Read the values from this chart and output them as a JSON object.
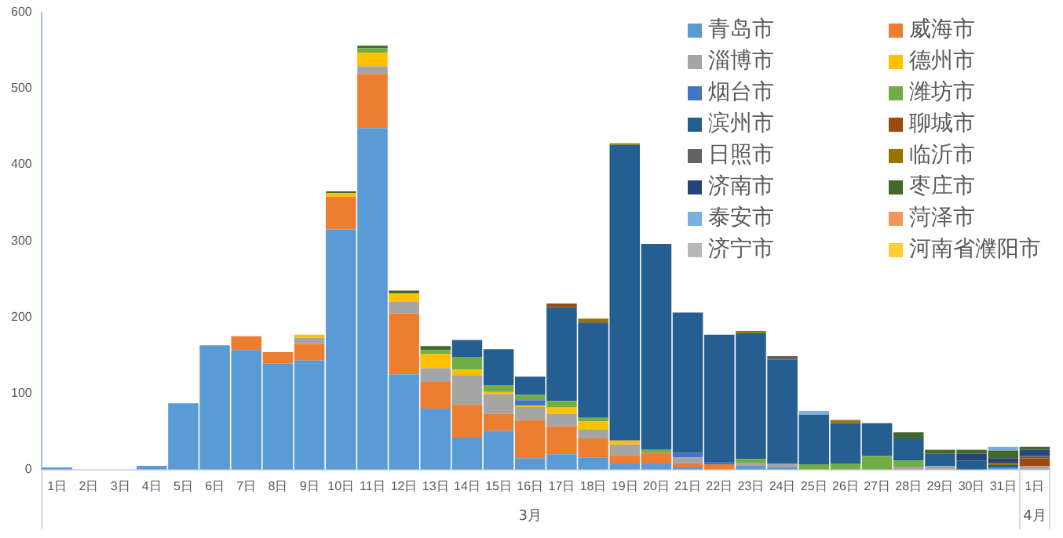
{
  "chart_data": {
    "type": "bar",
    "stacked": true,
    "categories": [
      "1日",
      "2日",
      "3日",
      "4日",
      "5日",
      "6日",
      "7日",
      "8日",
      "9日",
      "10日",
      "11日",
      "12日",
      "13日",
      "14日",
      "15日",
      "16日",
      "17日",
      "18日",
      "19日",
      "20日",
      "21日",
      "22日",
      "23日",
      "24日",
      "25日",
      "26日",
      "27日",
      "28日",
      "29日",
      "30日",
      "31日",
      "1日"
    ],
    "annotations": [
      "3月",
      "4月"
    ],
    "ylim": [
      0,
      600
    ],
    "yticks": [
      0,
      100,
      200,
      300,
      400,
      500,
      600
    ],
    "grid": false,
    "legend": "top right",
    "series": [
      {
        "name": "青岛市",
        "color": "#5b9bd5",
        "values": [
          3,
          0,
          0,
          5,
          87,
          163,
          157,
          139,
          143,
          315,
          448,
          125,
          80,
          42,
          51,
          15,
          20,
          16,
          8,
          8,
          3,
          0,
          5,
          3,
          0,
          0,
          0,
          0,
          0,
          0,
          2,
          0
        ]
      },
      {
        "name": "威海市",
        "color": "#ed7d31",
        "values": [
          0,
          0,
          0,
          0,
          0,
          0,
          18,
          15,
          22,
          43,
          71,
          80,
          35,
          43,
          22,
          50,
          37,
          25,
          11,
          14,
          5,
          7,
          0,
          0,
          0,
          0,
          0,
          0,
          0,
          0,
          0,
          0
        ]
      },
      {
        "name": "淄博市",
        "color": "#a5a5a5",
        "values": [
          0,
          0,
          0,
          0,
          0,
          0,
          0,
          0,
          8,
          null,
          10,
          15,
          18,
          39,
          26,
          17,
          16,
          12,
          14,
          null,
          8,
          0,
          4,
          5,
          0,
          0,
          0,
          4,
          5,
          0,
          0,
          5
        ]
      },
      {
        "name": "德州市",
        "color": "#ffc000",
        "values": [
          0,
          0,
          0,
          0,
          0,
          0,
          0,
          0,
          4,
          5,
          18,
          11,
          19,
          7,
          3,
          2,
          9,
          10,
          5,
          0,
          0,
          0,
          0,
          0,
          0,
          0,
          0,
          0,
          0,
          0,
          0,
          0
        ]
      },
      {
        "name": "烟台市",
        "color": "#4472c4",
        "values": [
          0,
          0,
          0,
          0,
          0,
          0,
          0,
          0,
          0,
          0,
          0,
          0,
          0,
          0,
          0,
          7,
          0,
          0,
          0,
          0,
          6,
          3,
          0,
          0,
          0,
          0,
          0,
          0,
          0,
          0,
          0,
          0
        ]
      },
      {
        "name": "潍坊市",
        "color": "#70ad47",
        "values": [
          0,
          0,
          0,
          0,
          0,
          0,
          0,
          0,
          0,
          0,
          6,
          0,
          5,
          17,
          9,
          7,
          8,
          5,
          0,
          4,
          0,
          0,
          5,
          0,
          7,
          8,
          18,
          8,
          0,
          0,
          0,
          0
        ]
      },
      {
        "name": "滨州市",
        "color": "#255e91",
        "values": [
          0,
          0,
          0,
          0,
          0,
          0,
          0,
          0,
          0,
          0,
          0,
          0,
          0,
          22,
          47,
          24,
          123,
          125,
          388,
          270,
          184,
          167,
          165,
          136,
          65,
          53,
          43,
          29,
          16,
          12,
          4,
          0
        ]
      },
      {
        "name": "聊城市",
        "color": "#9e480e",
        "values": [
          0,
          0,
          0,
          0,
          0,
          0,
          0,
          0,
          0,
          0,
          0,
          0,
          0,
          0,
          0,
          0,
          5,
          0,
          0,
          0,
          0,
          0,
          0,
          0,
          0,
          0,
          0,
          0,
          0,
          0,
          0,
          10
        ]
      },
      {
        "name": "日照市",
        "color": "#636363",
        "values": [
          0,
          0,
          0,
          0,
          0,
          0,
          0,
          0,
          0,
          0,
          0,
          0,
          0,
          0,
          0,
          0,
          0,
          0,
          0,
          0,
          0,
          0,
          0,
          5,
          0,
          0,
          0,
          0,
          0,
          0,
          0,
          3
        ]
      },
      {
        "name": "临沂市",
        "color": "#997300",
        "values": [
          0,
          0,
          0,
          0,
          0,
          0,
          0,
          0,
          0,
          0,
          0,
          0,
          0,
          0,
          0,
          0,
          0,
          5,
          2,
          0,
          0,
          0,
          3,
          0,
          0,
          4,
          0,
          0,
          0,
          0,
          3,
          0
        ]
      },
      {
        "name": "济南市",
        "color": "#264478",
        "values": [
          0,
          0,
          0,
          0,
          0,
          0,
          0,
          0,
          0,
          0,
          0,
          0,
          0,
          0,
          0,
          0,
          0,
          0,
          0,
          0,
          0,
          0,
          0,
          0,
          0,
          0,
          0,
          0,
          0,
          9,
          6,
          8
        ]
      },
      {
        "name": "枣庄市",
        "color": "#43682b",
        "values": [
          0,
          0,
          0,
          0,
          0,
          0,
          0,
          0,
          0,
          2,
          3,
          4,
          5,
          0,
          0,
          0,
          0,
          0,
          0,
          0,
          0,
          0,
          0,
          0,
          0,
          0,
          0,
          8,
          5,
          5,
          10,
          4
        ]
      },
      {
        "name": "泰安市",
        "color": "#7cafdd",
        "values": [
          0,
          0,
          0,
          0,
          0,
          0,
          0,
          0,
          0,
          0,
          0,
          0,
          0,
          0,
          0,
          0,
          0,
          0,
          0,
          0,
          0,
          0,
          0,
          0,
          5,
          0,
          0,
          0,
          0,
          0,
          5,
          0
        ]
      },
      {
        "name": "菏泽市",
        "color": "#f1975a",
        "values": [
          0,
          0,
          0,
          0,
          0,
          0,
          0,
          0,
          0,
          0,
          0,
          0,
          0,
          0,
          0,
          0,
          0,
          0,
          0,
          0,
          0,
          0,
          0,
          0,
          0,
          0,
          0,
          0,
          0,
          0,
          0,
          0
        ]
      },
      {
        "name": "济宁市",
        "color": "#b7b7b7",
        "values": [
          0,
          0,
          0,
          0,
          0,
          0,
          0,
          0,
          0,
          0,
          0,
          0,
          0,
          0,
          0,
          0,
          0,
          0,
          0,
          0,
          0,
          0,
          0,
          0,
          0,
          0,
          0,
          0,
          0,
          0,
          0,
          0
        ]
      },
      {
        "name": "河南省濮阳市",
        "color": "#ffcd33",
        "values": [
          0,
          0,
          0,
          0,
          0,
          0,
          0,
          0,
          0,
          0,
          0,
          0,
          0,
          0,
          0,
          0,
          0,
          0,
          0,
          0,
          0,
          0,
          0,
          0,
          0,
          0,
          0,
          0,
          0,
          0,
          0,
          0
        ]
      }
    ]
  }
}
